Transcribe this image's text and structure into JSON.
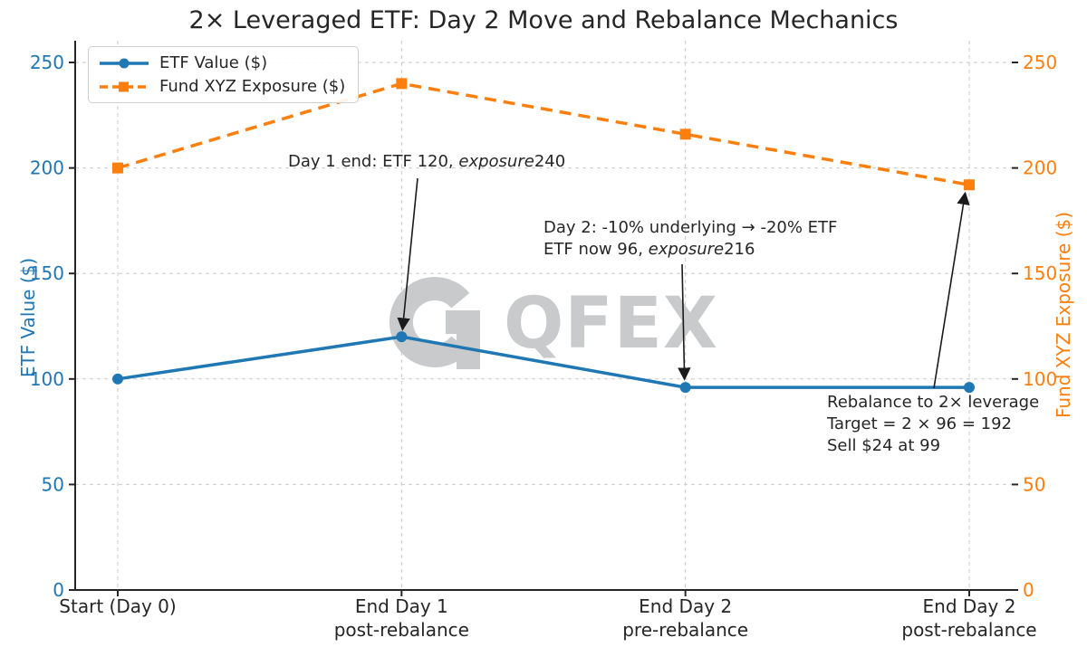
{
  "title": "2× Leveraged ETF: Day 2 Move and Rebalance Mechanics",
  "watermark": {
    "text": "QFEX"
  },
  "theme": {
    "etf_blue": "#1f77b4",
    "exposure_orange": "#ff7f0e",
    "grid_gray": "#c9c9c9",
    "spine_dark": "#262626",
    "text_dark": "#262626",
    "arrow_black": "#1a1a1a",
    "watermark_gray": "#c9cacb",
    "background": "#ffffff"
  },
  "chart_data": {
    "type": "line",
    "title": "2× Leveraged ETF: Day 2 Move and Rebalance Mechanics",
    "categories": [
      "Start (Day 0)",
      "End Day 1\npost-rebalance",
      "End Day 2\npre-rebalance",
      "End Day 2\npost-rebalance"
    ],
    "series": [
      {
        "name": "ETF Value ($)",
        "values": [
          100,
          120,
          96,
          96
        ],
        "color": "#1f77b4",
        "line_style": "solid",
        "marker": "circle",
        "axis": "left"
      },
      {
        "name": "Fund XYZ Exposure ($)",
        "values": [
          200,
          240,
          216,
          192
        ],
        "color": "#ff7f0e",
        "line_style": "dashed",
        "marker": "square",
        "axis": "right"
      }
    ],
    "left_axis": {
      "label": "ETF Value ($)",
      "ticks": [
        0,
        50,
        100,
        150,
        200,
        250
      ],
      "range": [
        0,
        260.3
      ],
      "color": "#1f77b4"
    },
    "right_axis": {
      "label": "Fund XYZ Exposure ($)",
      "ticks": [
        0,
        50,
        100,
        150,
        200,
        250
      ],
      "range": [
        0,
        260.3
      ],
      "color": "#ff7f0e"
    },
    "grid": true,
    "legend_position": "upper-left",
    "annotations": {
      "day1": {
        "pre": "Day 1 end: ETF 120, ",
        "em": "exposure",
        "post": "240",
        "target": {
          "series": 0,
          "point": 1
        }
      },
      "day2": {
        "line1": "Day 2: -10% underlying → -20% ETF",
        "pre": "ETF now 96, ",
        "em": "exposure",
        "post": "216",
        "target": {
          "series": 0,
          "point": 2
        }
      },
      "rebalance": {
        "line1": "Rebalance to 2× leverage",
        "line2": "Target = 2 × 96 = 192",
        "line3": "Sell $24 at 99",
        "target": {
          "series": 1,
          "point": 3
        }
      }
    }
  }
}
